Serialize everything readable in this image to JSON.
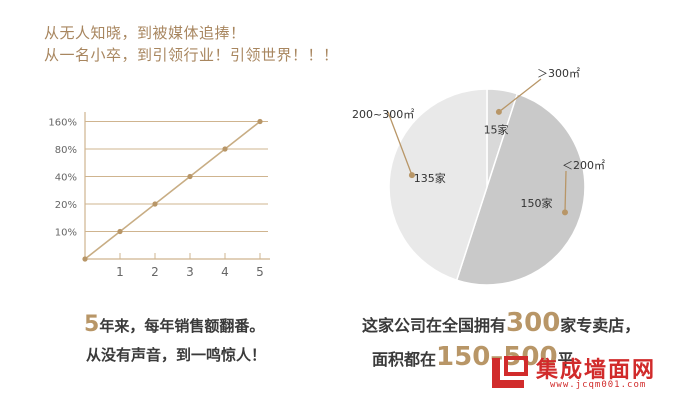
{
  "headline": {
    "line1": "从无人知晓，到被媒体追捧！",
    "line2": "从一名小卒，到引领行业！引领世界！！！"
  },
  "colors": {
    "accent": "#b89667",
    "line_color": "#c8ad84",
    "grid": "#cfb48f",
    "pie_dark": "#c9c9c9",
    "pie_mid": "#d9d9d9",
    "pie_light": "#e9e9e9",
    "logo": "#d12b2b"
  },
  "chart_data": [
    {
      "type": "line",
      "x": [
        0,
        1,
        2,
        3,
        4,
        5
      ],
      "y": [
        0,
        10,
        20,
        40,
        80,
        160
      ],
      "xticks": [
        "1",
        "2",
        "3",
        "4",
        "5"
      ],
      "yticks": [
        "10%",
        "20%",
        "40%",
        "80%",
        "160%"
      ],
      "grid": true
    },
    {
      "type": "pie",
      "slices": [
        {
          "label": "15家",
          "value": 15,
          "range": "＞300㎡"
        },
        {
          "label": "150家",
          "value": 150,
          "range": "＜200㎡"
        },
        {
          "label": "135家",
          "value": 135,
          "range": "200~300㎡"
        }
      ]
    }
  ],
  "captions": {
    "left": {
      "big": "5",
      "line1_rest": "年来，每年销售额翻番。",
      "line2": "从没有声音，到一鸣惊人！"
    },
    "right": {
      "line1_pre": "这家公司在全国拥有",
      "line1_big": "300",
      "line1_post": "家专卖店，",
      "line2_pre": "面积都在",
      "line2_big": "150–500",
      "line2_post": "平"
    }
  },
  "logo": {
    "text": "集成墙面网",
    "url": "www.jcqm001.com"
  }
}
